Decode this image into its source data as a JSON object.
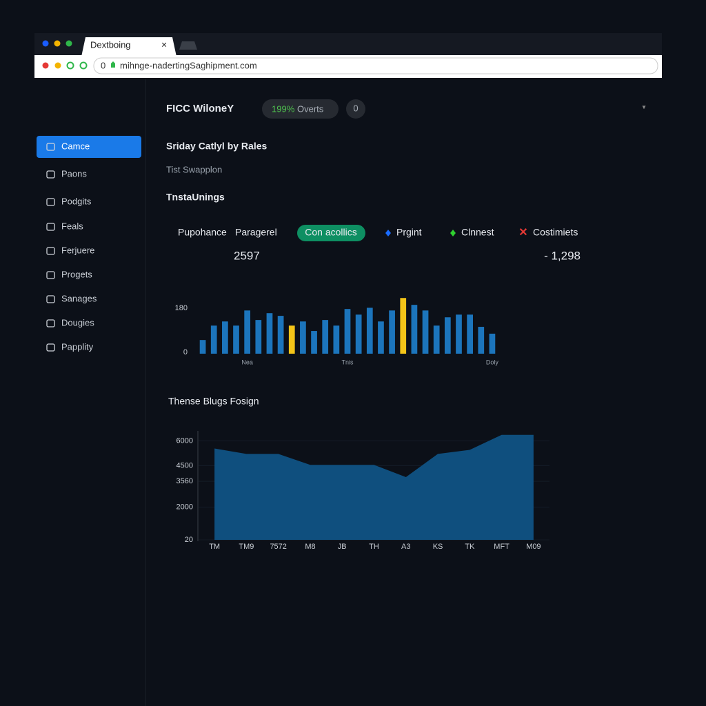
{
  "browser": {
    "tab": "Dextboing",
    "url": "mihnge-nadertingSaghipment.com"
  },
  "header": {
    "title": "FICC WiloneY",
    "pill_value": "199%",
    "pill_text": "Overts",
    "badge": "0"
  },
  "sidebar": {
    "items": [
      "Camce",
      "Paons",
      "Podgits",
      "Feals",
      "Ferjuere",
      "Progets",
      "Sanages",
      "Dougies",
      "Papplity"
    ]
  },
  "content": {
    "section_title": "Sriday Catlyl by Rales",
    "subtitle": "Tist Swapplon",
    "heading": "TnstaUnings",
    "tabs": [
      "Pupohance",
      "Paragerel"
    ],
    "pill": "Con acollics",
    "legend": [
      "Prgint",
      "Clnnest",
      "Costimiets"
    ],
    "stat_left": "2597",
    "stat_right": "- 1,298",
    "second_title": "Thense Blugs Fosign"
  },
  "chart_data": [
    {
      "type": "bar",
      "categories": [
        null,
        null,
        null,
        null,
        "Nea",
        null,
        null,
        null,
        null,
        null,
        null,
        null,
        null,
        "Tnis",
        null,
        null,
        null,
        null,
        null,
        null,
        null,
        null,
        null,
        null,
        null,
        null,
        "Doly"
      ],
      "values": [
        56,
        115,
        132,
        115,
        177,
        138,
        166,
        155,
        115,
        132,
        93,
        138,
        115,
        183,
        160,
        188,
        132,
        177,
        228,
        200,
        177,
        115,
        149,
        160,
        160,
        110,
        82
      ],
      "colors": [
        "#1c75bc",
        "#1c75bc",
        "#1c75bc",
        "#1c75bc",
        "#1c75bc",
        "#1c75bc",
        "#1c75bc",
        "#1c75bc",
        "#f5c518",
        "#1c75bc",
        "#1c75bc",
        "#1c75bc",
        "#1c75bc",
        "#1c75bc",
        "#1c75bc",
        "#1c75bc",
        "#1c75bc",
        "#1c75bc",
        "#f5c518",
        "#1c75bc",
        "#1c75bc",
        "#1c75bc",
        "#1c75bc",
        "#1c75bc",
        "#1c75bc",
        "#1c75bc",
        "#1c75bc"
      ],
      "ylim": [
        0,
        240
      ],
      "yticks": [
        0,
        180
      ]
    },
    {
      "type": "area",
      "categories": [
        "TM",
        "TM9",
        "7572",
        "M8",
        "JB",
        "TH",
        "A3",
        "KS",
        "TK",
        "MFT",
        "M09"
      ],
      "values": [
        5546,
        5216,
        5216,
        4556,
        4556,
        4556,
        3814,
        5216,
        5464,
        6371,
        6371
      ],
      "color": "#0f4f7e",
      "ylim": [
        20,
        6400
      ],
      "yticks": [
        20,
        2000,
        3560,
        4500,
        6000
      ]
    }
  ]
}
